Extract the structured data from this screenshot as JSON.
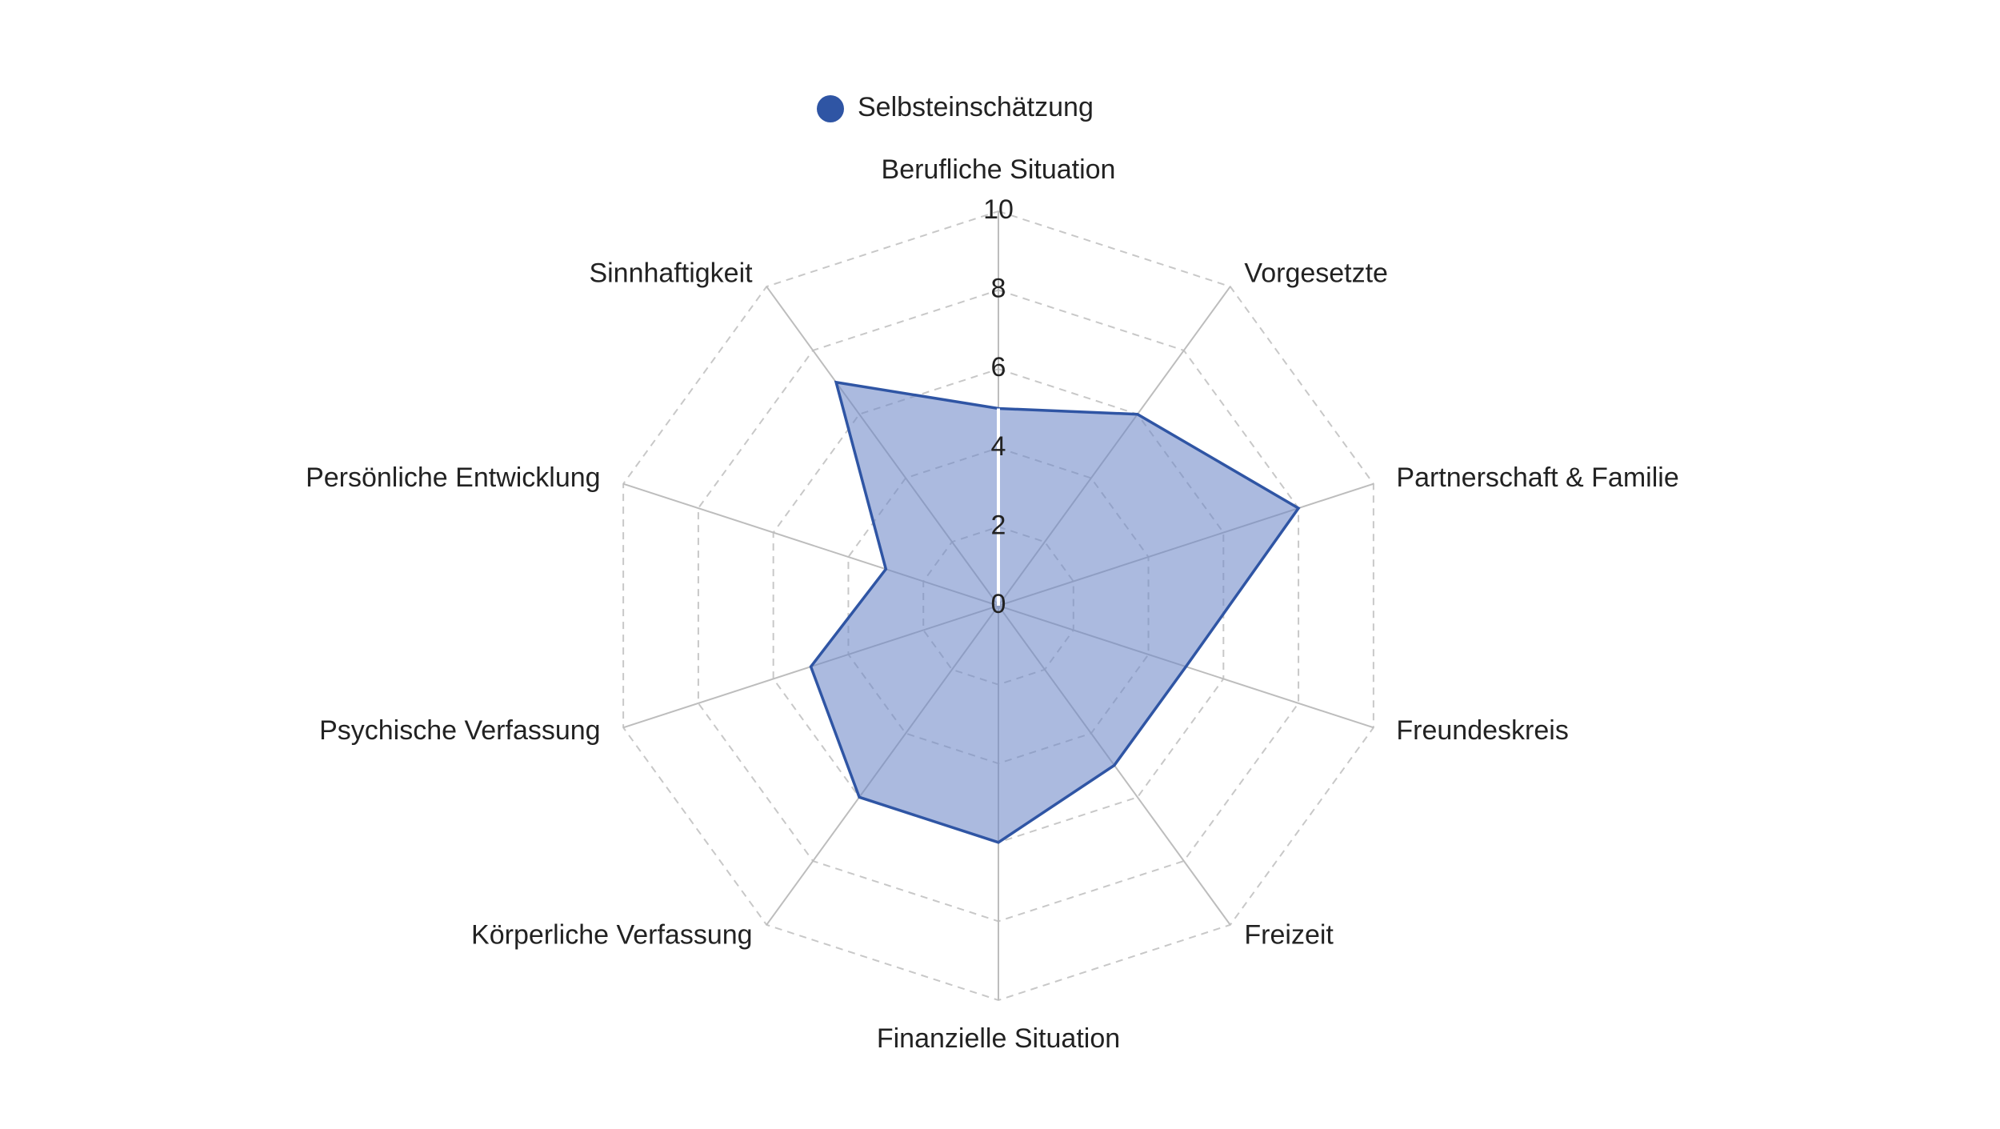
{
  "chart_data": {
    "type": "radar",
    "categories": [
      "Berufliche Situation",
      "Vorgesetzte",
      "Partnerschaft & Familie",
      "Freundeskreis",
      "Freizeit",
      "Finanzielle Situation",
      "Körperliche Verfassung",
      "Psychische Verfassung",
      "Persönliche Entwicklung",
      "Sinnhaftigkeit"
    ],
    "series": [
      {
        "name": "Selbsteinschätzung",
        "values": [
          5,
          6,
          8,
          5,
          5,
          6,
          6,
          5,
          3,
          7
        ],
        "color": "#3a5ca8"
      }
    ],
    "rlim": [
      0,
      10
    ],
    "ticks": [
      "0",
      "2",
      "4",
      "6",
      "8",
      "10"
    ],
    "tick_values": [
      0,
      2,
      4,
      6,
      8,
      10
    ],
    "grid": true,
    "grid_style": "dashed",
    "legend_position": "top"
  },
  "colors": {
    "series_stroke": "#2f55a4",
    "series_fill": "#6f88c8",
    "grid": "#c8c8c8",
    "spoke": "#bdbdbd",
    "value_axis": "#ffffff"
  }
}
